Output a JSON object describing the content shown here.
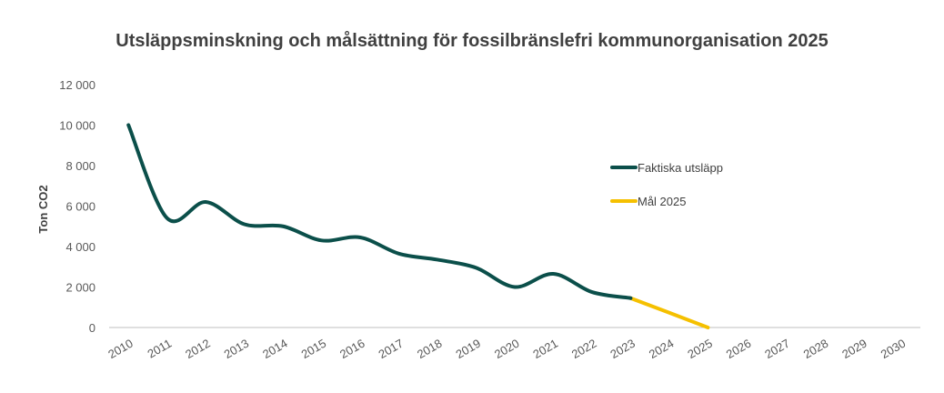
{
  "chart_data": {
    "type": "line",
    "title": "Utsläppsminskning och målsättning för fossilbränslefri kommunorganisation 2025",
    "xlabel": "",
    "ylabel": "Ton CO2",
    "ylim": [
      0,
      12000
    ],
    "yticks": [
      "0",
      "2 000",
      "4 000",
      "6 000",
      "8 000",
      "10 000",
      "12 000"
    ],
    "categories": [
      "2010",
      "2011",
      "2012",
      "2013",
      "2014",
      "2015",
      "2016",
      "2017",
      "2018",
      "2019",
      "2020",
      "2021",
      "2022",
      "2023",
      "2024",
      "2025",
      "2026",
      "2027",
      "2028",
      "2029",
      "2030"
    ],
    "grid": false,
    "legend_position": "right",
    "series": [
      {
        "name": "Faktiska utsläpp",
        "color": "#0b4f4a",
        "x": [
          "2010",
          "2011",
          "2012",
          "2013",
          "2014",
          "2015",
          "2016",
          "2017",
          "2018",
          "2019",
          "2020",
          "2021",
          "2022",
          "2023"
        ],
        "values": [
          10000,
          5400,
          6200,
          5100,
          5000,
          4300,
          4450,
          3650,
          3350,
          2950,
          2000,
          2650,
          1750,
          1450
        ]
      },
      {
        "name": "Mål 2025",
        "color": "#f5c000",
        "x": [
          "2023",
          "2024",
          "2025"
        ],
        "values": [
          1450,
          730,
          0
        ]
      }
    ]
  }
}
